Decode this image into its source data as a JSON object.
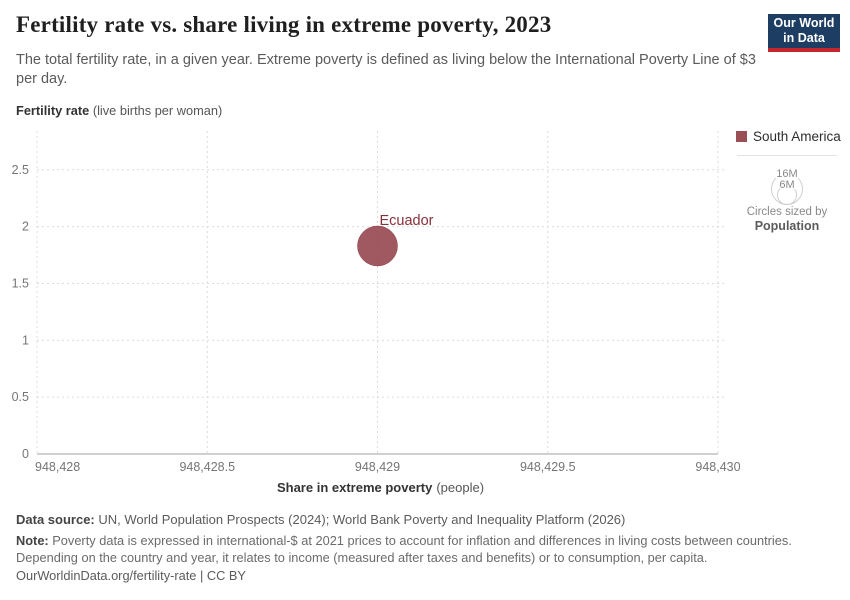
{
  "header": {
    "title": "Fertility rate vs. share living in extreme poverty, 2023",
    "subtitle": "The total fertility rate, in a given year. Extreme poverty is defined as living below the International Poverty Line of $3 per day.",
    "logo": {
      "line1": "Our World",
      "line2": "in Data",
      "bg_color": "#1d3d63",
      "accent_color": "#c5262e"
    }
  },
  "chart_data": {
    "type": "scatter",
    "title": "Fertility rate vs. share living in extreme poverty, 2023",
    "xlabel": "Share in extreme poverty (people)",
    "xlabel_bold": "Share in extreme poverty",
    "xlabel_unit": "(people)",
    "ylabel": "Fertility rate (live births per woman)",
    "ylabel_bold": "Fertility rate",
    "ylabel_unit": "(live births per woman)",
    "xlim": [
      948428,
      948430
    ],
    "ylim": [
      0,
      2.85
    ],
    "xticks": [
      948428,
      948428.5,
      948429,
      948429.5,
      948430
    ],
    "xtick_labels": [
      "948,428",
      "948,428.5",
      "948,429",
      "948,429.5",
      "948,430"
    ],
    "yticks": [
      0,
      0.5,
      1,
      1.5,
      2,
      2.5
    ],
    "ytick_labels": [
      "0",
      "0.5",
      "1",
      "1.5",
      "2",
      "2.5"
    ],
    "grid": true,
    "grid_color": "#dcdcdc",
    "axis_color": "#a1a1a1",
    "point_fill": "#883039",
    "point_fill_opacity": 0.8,
    "point_label_color": "#883039",
    "series": [
      {
        "name": "South America",
        "color": "#883039"
      }
    ],
    "points": [
      {
        "label": "Ecuador",
        "x": 948429,
        "y": 1.83,
        "series": "South America",
        "radius_px": 20
      }
    ]
  },
  "legend": {
    "items": [
      {
        "label": "South America",
        "color": "#883039"
      }
    ],
    "size_legend": {
      "outer_label": "16M",
      "inner_label": "6M",
      "caption": "Circles sized by",
      "caption_bold": "Population"
    }
  },
  "footer": {
    "datasource_label": "Data source:",
    "datasource_text": "UN, World Population Prospects (2024); World Bank Poverty and Inequality Platform (2026)",
    "note_label": "Note:",
    "note_text": "Poverty data is expressed in international-$ at 2021 prices to account for inflation and differences in living costs between countries. Depending on the country and year, it relates to income (measured after taxes and benefits) or to consumption, per capita.",
    "cite_link": "OurWorldinData.org/fertility-rate | CC BY"
  }
}
